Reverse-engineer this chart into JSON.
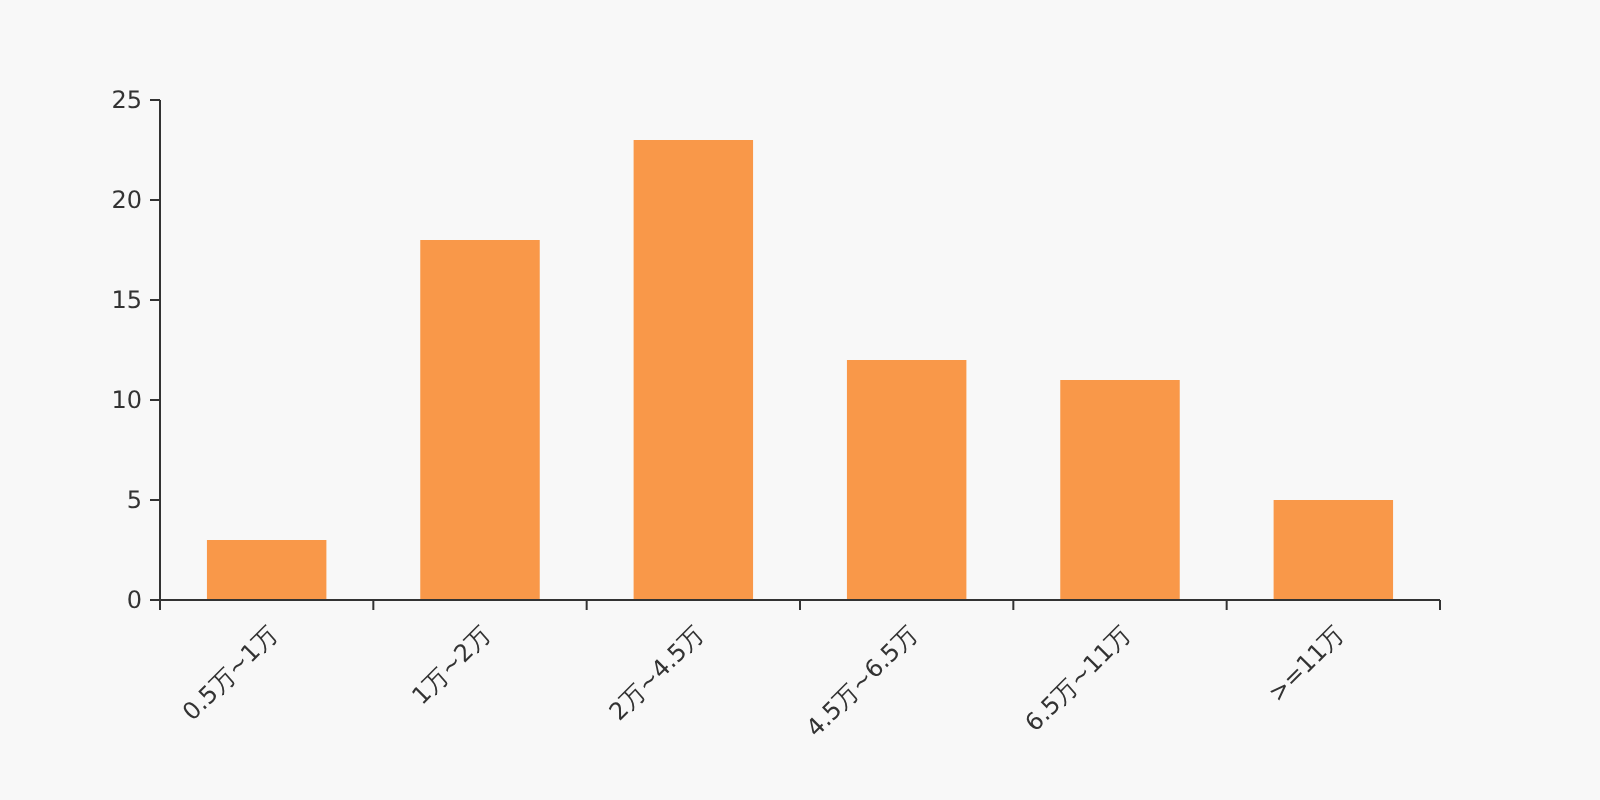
{
  "chart_data": {
    "type": "bar",
    "categories": [
      "0.5万~1万",
      "1万~2万",
      "2万~4.5万",
      "4.5万~6.5万",
      "6.5万~11万",
      ">=11万"
    ],
    "values": [
      3,
      18,
      23,
      12,
      11,
      5
    ],
    "color": "#f99849",
    "ylim": [
      0,
      25
    ],
    "yticks": [
      0,
      5,
      10,
      15,
      20,
      25
    ]
  }
}
